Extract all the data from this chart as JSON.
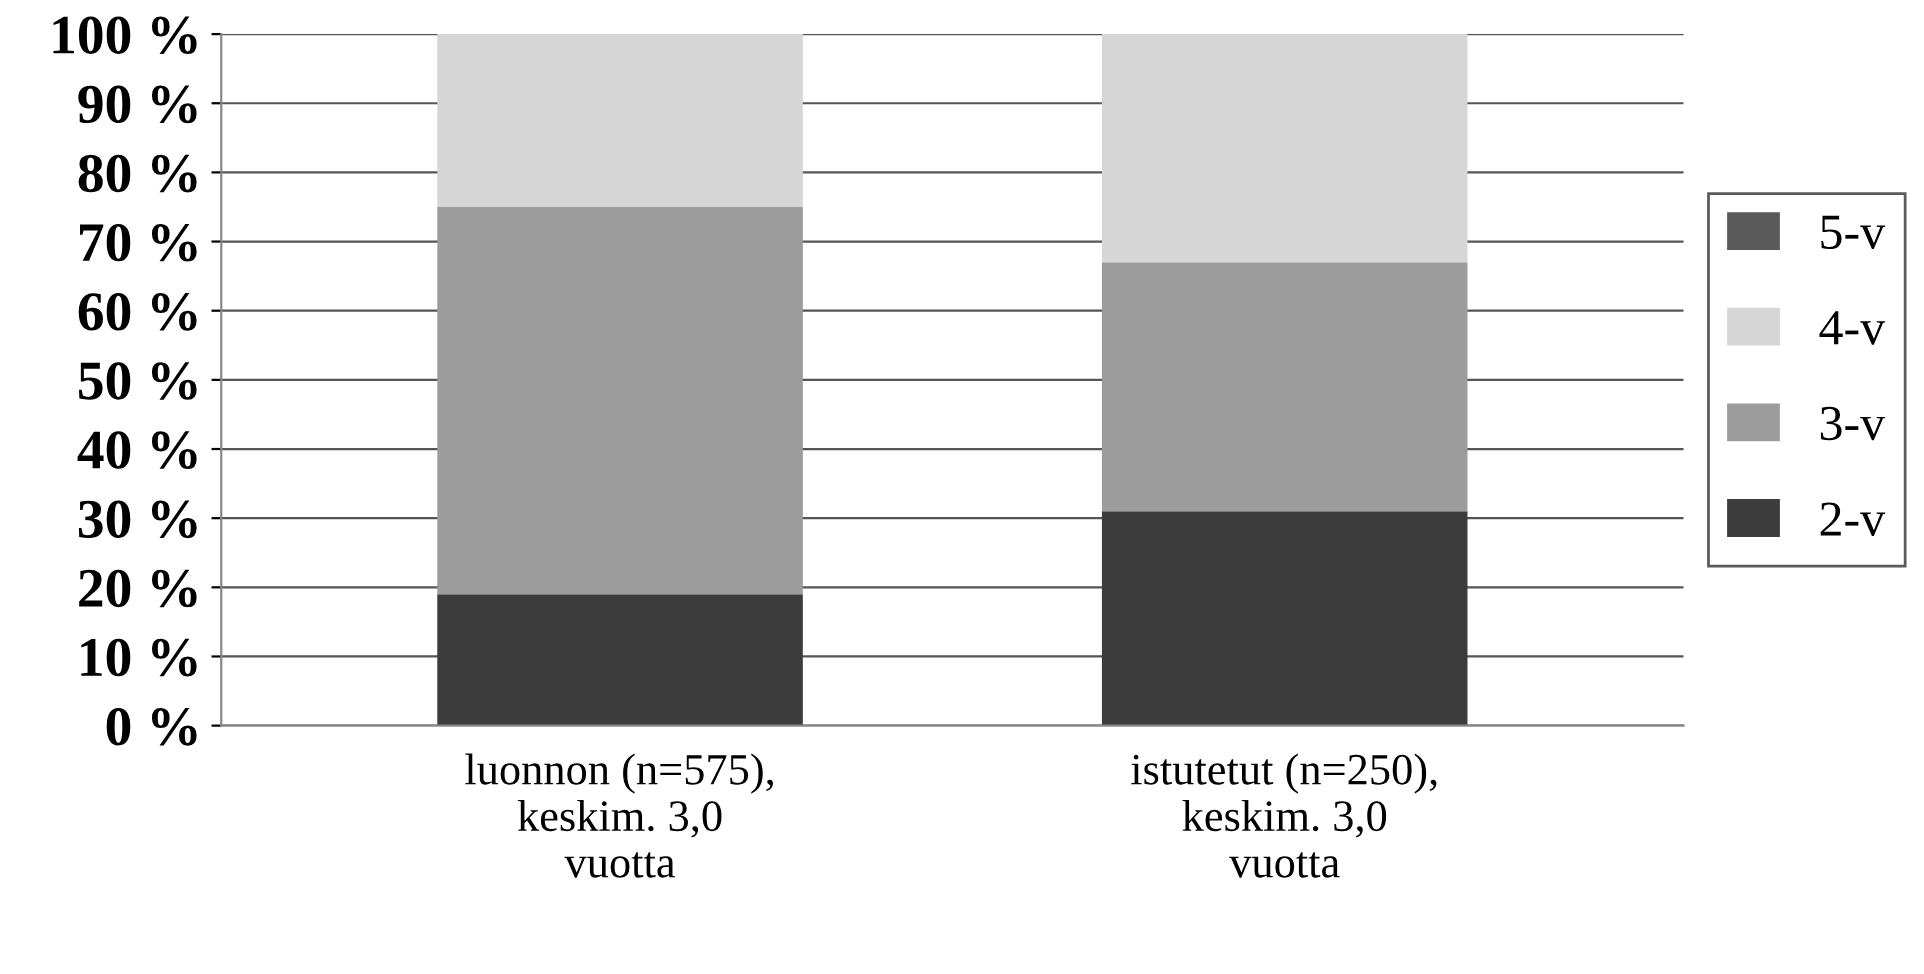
{
  "chart_data": {
    "type": "bar",
    "stacked": true,
    "categories": [
      "luonnon (n=575),\nkeskim. 3,0\nvuotta",
      "istutetut (n=250),\nkeskim. 3,0\nvuotta"
    ],
    "series": [
      {
        "name": "2-v",
        "color": "#3c3c3c",
        "values": [
          19,
          31
        ]
      },
      {
        "name": "3-v",
        "color": "#9c9c9c",
        "values": [
          56,
          36
        ]
      },
      {
        "name": "4-v",
        "color": "#d6d6d6",
        "values": [
          25,
          33
        ]
      },
      {
        "name": "5-v",
        "color": "#5a5a5a",
        "values": [
          0,
          0
        ]
      }
    ],
    "ylim": [
      0,
      100
    ],
    "yticks": [
      {
        "value": 0,
        "label": "0 %"
      },
      {
        "value": 10,
        "label": "10 %"
      },
      {
        "value": 20,
        "label": "20 %"
      },
      {
        "value": 30,
        "label": "30 %"
      },
      {
        "value": 40,
        "label": "40 %"
      },
      {
        "value": 50,
        "label": "50 %"
      },
      {
        "value": 60,
        "label": "60 %"
      },
      {
        "value": 70,
        "label": "70 %"
      },
      {
        "value": 80,
        "label": "80 %"
      },
      {
        "value": 90,
        "label": "90 %"
      },
      {
        "value": 100,
        "label": "100 %"
      }
    ],
    "grid": "y",
    "legend": "right"
  }
}
